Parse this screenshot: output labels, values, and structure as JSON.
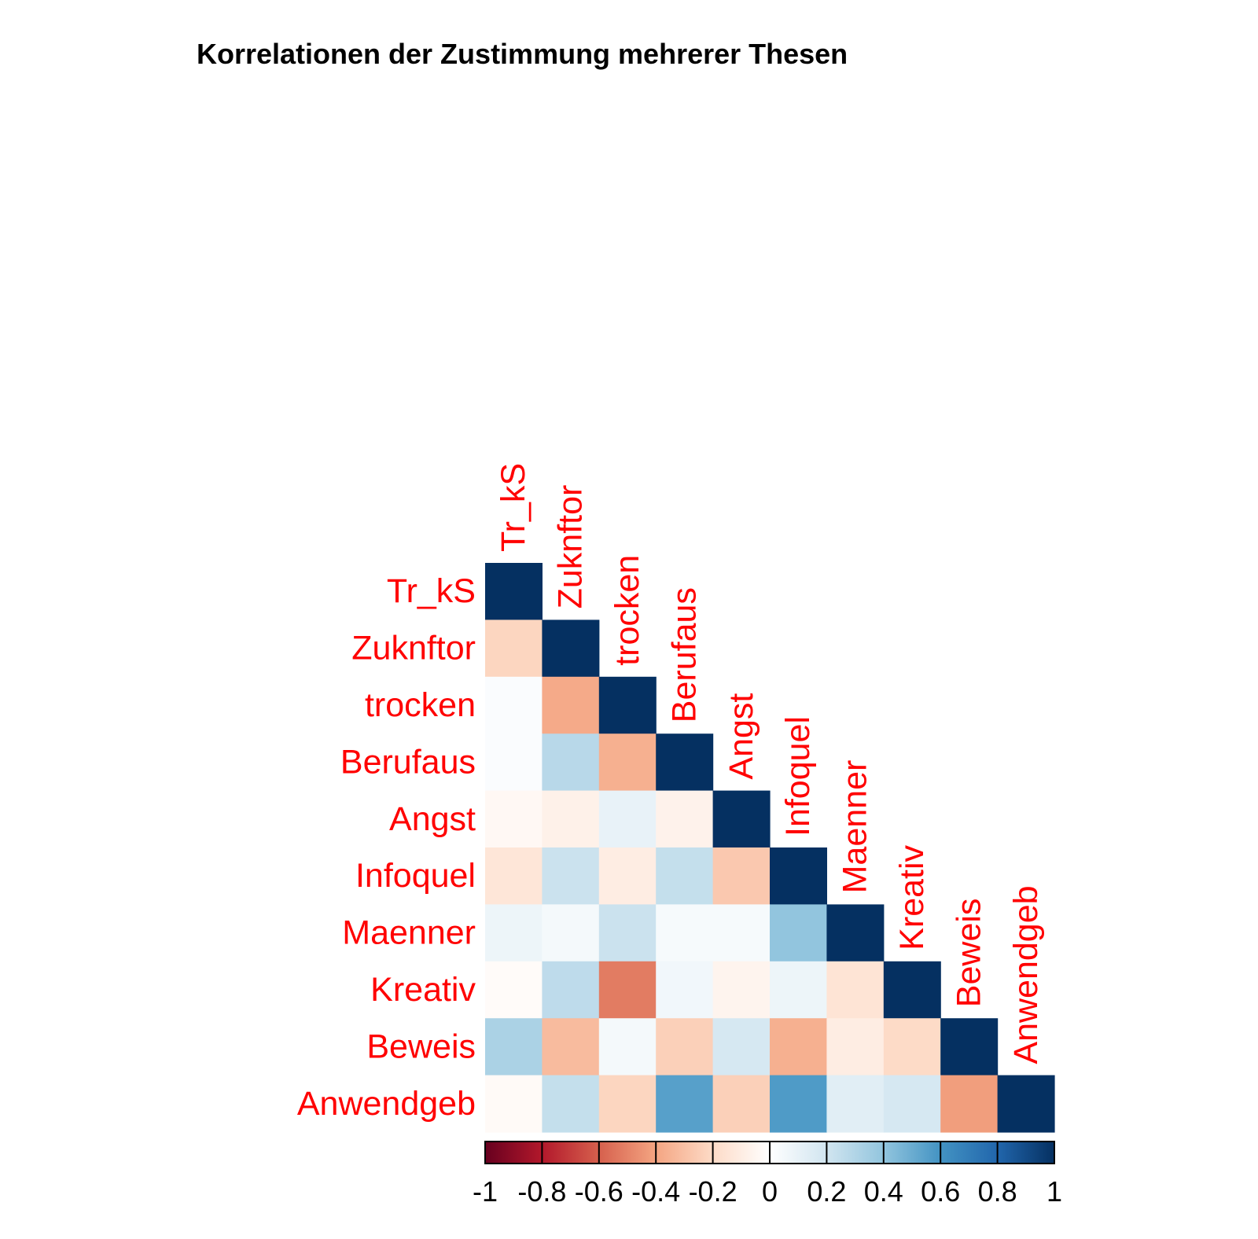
{
  "title": "Korrelationen der Zustimmung mehrerer Thesen",
  "colors": {
    "label": "#ff0000",
    "tick": "#000000",
    "scale": [
      "#67001f",
      "#b2182b",
      "#d6604d",
      "#f4a582",
      "#fddbc7",
      "#ffffff",
      "#d1e5f0",
      "#92c5de",
      "#4393c3",
      "#2166ac",
      "#053061"
    ]
  },
  "chart_data": {
    "type": "heatmap",
    "variables": [
      "Tr_kS",
      "Zuknftor",
      "trocken",
      "Berufaus",
      "Angst",
      "Infoquel",
      "Maenner",
      "Kreativ",
      "Beweis",
      "Anwendgeb"
    ],
    "layout": "lower-triangle",
    "matrix": [
      [
        1
      ],
      [
        -0.22,
        1
      ],
      [
        0.02,
        -0.38,
        1
      ],
      [
        0.02,
        0.28,
        -0.36,
        1
      ],
      [
        -0.04,
        -0.08,
        0.1,
        -0.07,
        1
      ],
      [
        -0.14,
        0.22,
        -0.1,
        0.24,
        -0.27,
        1
      ],
      [
        0.08,
        0.05,
        0.22,
        0.04,
        0.04,
        0.4,
        1
      ],
      [
        -0.02,
        0.26,
        -0.52,
        0.06,
        -0.06,
        0.08,
        -0.15,
        1
      ],
      [
        0.32,
        -0.32,
        0.05,
        -0.24,
        0.18,
        -0.36,
        -0.1,
        -0.2,
        1
      ],
      [
        -0.03,
        0.24,
        -0.22,
        0.55,
        -0.24,
        0.57,
        0.13,
        0.18,
        -0.42,
        1
      ]
    ],
    "colorbar": {
      "range": [
        -1,
        1
      ],
      "ticks": [
        "-1",
        "-0.8",
        "-0.6",
        "-0.4",
        "-0.2",
        "0",
        "0.2",
        "0.4",
        "0.6",
        "0.8",
        "1"
      ]
    }
  }
}
